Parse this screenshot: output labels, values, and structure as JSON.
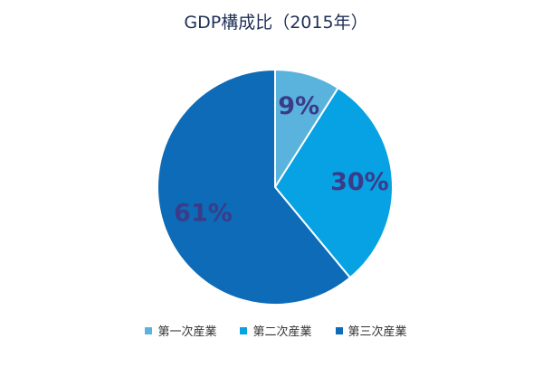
{
  "chart_data": {
    "type": "pie",
    "title": "GDP構成比（2015年）",
    "categories": [
      "第一次産業",
      "第二次産業",
      "第三次産業"
    ],
    "values": [
      9,
      30,
      61
    ],
    "labels": [
      "9%",
      "30%",
      "61%"
    ],
    "colors": [
      "#5ab3dc",
      "#07a2e3",
      "#0d6bb7"
    ],
    "label_color": "#3a3c8a",
    "legend_position": "bottom"
  }
}
